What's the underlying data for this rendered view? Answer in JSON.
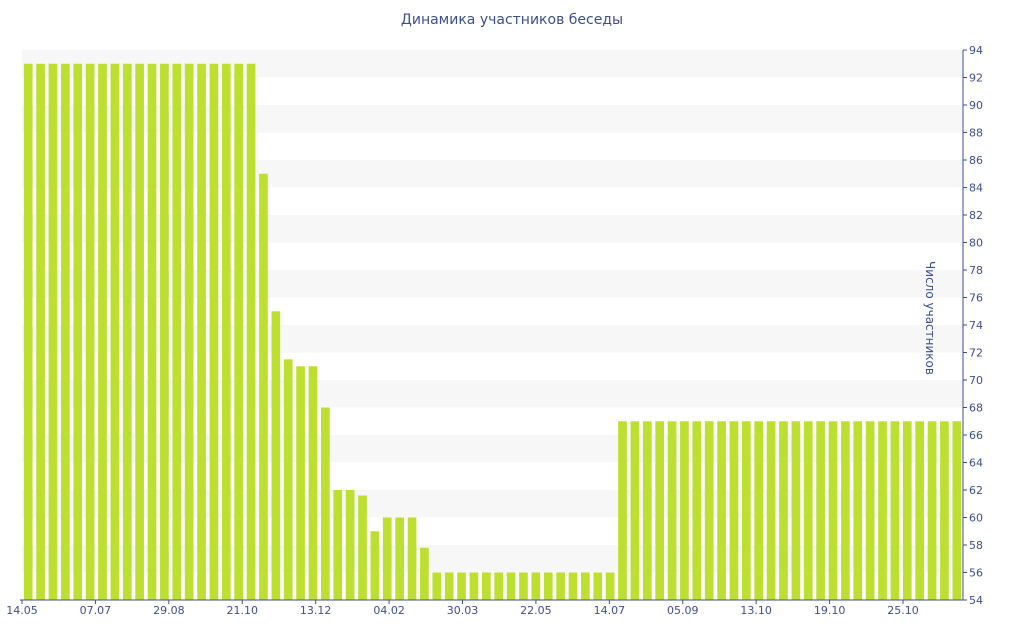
{
  "chart_data": {
    "type": "bar",
    "title": "Динамика участников беседы",
    "ylabel": "Число участников",
    "ylim": [
      54,
      94
    ],
    "yticks": [
      54,
      56,
      58,
      60,
      62,
      64,
      66,
      68,
      70,
      72,
      74,
      76,
      78,
      80,
      82,
      84,
      86,
      88,
      90,
      92,
      94
    ],
    "x_tick_labels": [
      "14.05",
      "07.07",
      "29.08",
      "21.10",
      "13.12",
      "04.02",
      "30.03",
      "22.05",
      "14.07",
      "05.09",
      "13.10",
      "19.10",
      "25.10"
    ],
    "values": [
      93,
      93,
      93,
      93,
      93,
      93,
      93,
      93,
      93,
      93,
      93,
      93,
      93,
      93,
      93,
      93,
      93,
      93,
      93,
      85,
      75,
      71.5,
      71,
      71,
      68,
      62,
      62,
      61.6,
      59,
      60,
      60,
      60,
      57.8,
      56,
      56,
      56,
      56,
      56,
      56,
      56,
      56,
      56,
      56,
      56,
      56,
      56,
      56,
      56,
      67,
      67,
      67,
      67,
      67,
      67,
      67,
      67,
      67,
      67,
      67,
      67,
      67,
      67,
      67,
      67,
      67,
      67,
      67,
      67,
      67,
      67,
      67,
      67,
      67,
      67,
      67,
      67
    ],
    "bar_color": "#bde030",
    "band_color": "#f7f7f7",
    "axis_color": "#3e4f8f",
    "grid": "alternating-bands",
    "y_axis_position": "right"
  }
}
